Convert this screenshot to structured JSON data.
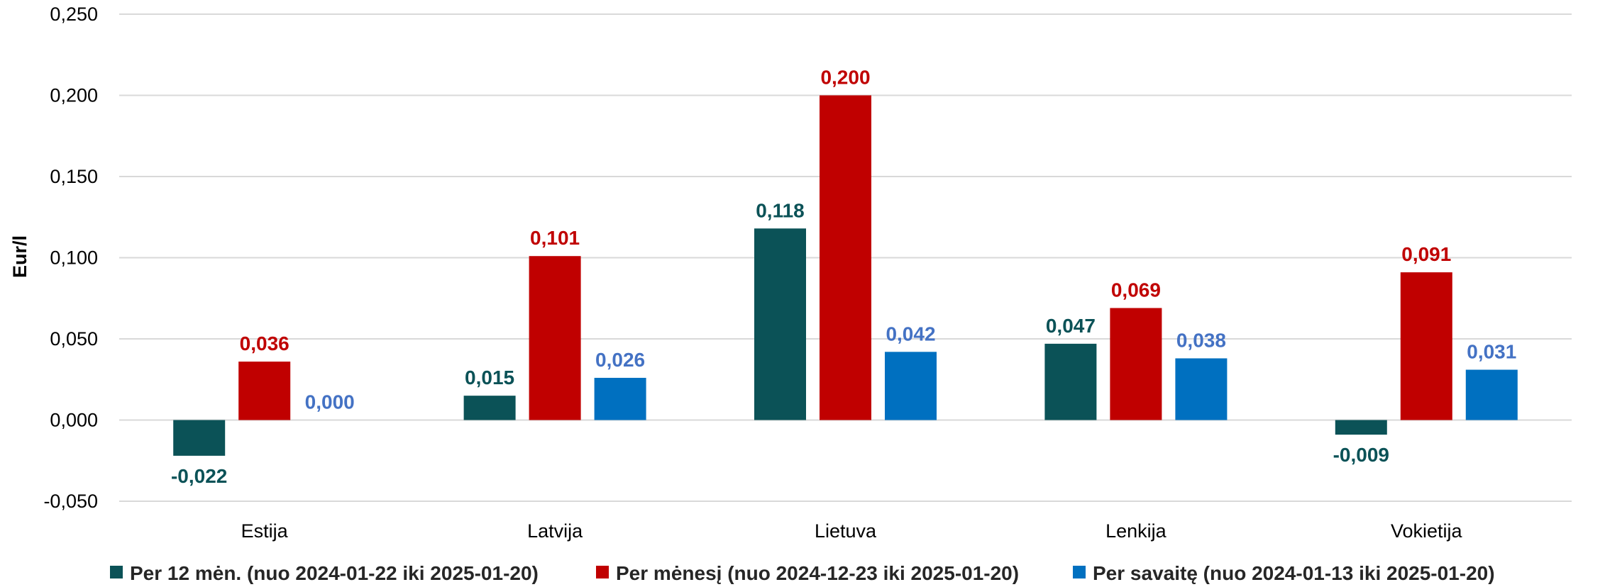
{
  "chart_data": {
    "type": "bar",
    "ylabel": "Eur/l",
    "xlabel": "",
    "ylim": [
      -0.05,
      0.25
    ],
    "yticks": [
      "-0,050",
      "0,000",
      "0,050",
      "0,100",
      "0,150",
      "0,200",
      "0,250"
    ],
    "grid": true,
    "legend_position": "bottom",
    "categories": [
      "Estija",
      "Latvija",
      "Lietuva",
      "Lenkija",
      "Vokietija"
    ],
    "series": [
      {
        "name": "Per 12 mėn. (nuo 2024-01-22 iki 2025-01-20)",
        "color": "#0b5257",
        "label_color": "#0b5257",
        "values": [
          -0.022,
          0.015,
          0.118,
          0.047,
          -0.009
        ],
        "labels": [
          "-0,022",
          "0,015",
          "0,118",
          "0,047",
          "-0,009"
        ]
      },
      {
        "name": "Per mėnesį (nuo 2024-12-23 iki 2025-01-20)",
        "color": "#c00000",
        "label_color": "#c00000",
        "values": [
          0.036,
          0.101,
          0.2,
          0.069,
          0.091
        ],
        "labels": [
          "0,036",
          "0,101",
          "0,200",
          "0,069",
          "0,091"
        ]
      },
      {
        "name": "Per savaitę (nuo 2024-01-13 iki 2025-01-20)",
        "color": "#0070c0",
        "label_color": "#4472c4",
        "values": [
          0.0,
          0.026,
          0.042,
          0.038,
          0.031
        ],
        "labels": [
          "0,000",
          "0,026",
          "0,042",
          "0,038",
          "0,031"
        ]
      }
    ]
  }
}
